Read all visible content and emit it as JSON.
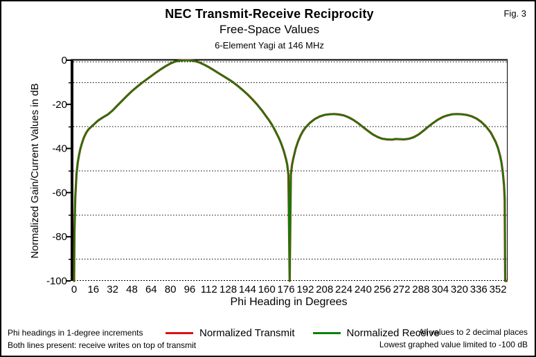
{
  "figure": {
    "title": "NEC Transmit-Receive Reciprocity",
    "subtitle": "Free-Space Values",
    "caption": "6-Element Yagi at 146 MHz",
    "fig_label": "Fig. 3"
  },
  "legend": {
    "items": [
      {
        "label": "Normalized Transmit",
        "color": "#e01010"
      },
      {
        "label": "Normalized Receive",
        "color": "#078207"
      }
    ]
  },
  "footnotes": {
    "left_line1": "Phi headings in 1-degree increments",
    "left_line2": "Both lines present: receive writes on top of transmit",
    "right_line1": "All values to 2 decimal places",
    "right_line2": "Lowest graphed value limited to -100 dB"
  },
  "chart_data": {
    "type": "line",
    "title": "NEC Transmit-Receive Reciprocity - Free-Space Values - 6-Element Yagi at 146 MHz",
    "xlabel": "Phi Heading in Degrees",
    "ylabel": "Normalized Gain/Current Values in dB",
    "xlim": [
      0,
      360
    ],
    "ylim": [
      -100,
      0
    ],
    "x_ticks": [
      0,
      16,
      32,
      48,
      64,
      80,
      96,
      112,
      128,
      144,
      160,
      176,
      192,
      208,
      224,
      240,
      256,
      272,
      288,
      304,
      320,
      336,
      352
    ],
    "y_ticks": [
      0,
      -20,
      -40,
      -60,
      -80,
      -100
    ],
    "y_minor_gridlines": [
      -10,
      -30,
      -50,
      -70,
      -90
    ],
    "grid": "dotted horizontal gridlines at -10/-30/-50/-70/-90; dotted baseline at -100; solid top and right frame; solid thick y-axis",
    "legend_position": "bottom",
    "notes": "Receive curve is drawn on top of the identical transmit curve; lowest graphed value limited to -100 dB",
    "series": [
      {
        "name": "Normalized Transmit",
        "color": "#e01010",
        "identical_to": "Normalized Receive"
      },
      {
        "name": "Normalized Receive",
        "color": "#078207",
        "points": [
          [
            0,
            -100
          ],
          [
            0.3,
            -78
          ],
          [
            1,
            -62
          ],
          [
            2,
            -51.5
          ],
          [
            3,
            -46.5
          ],
          [
            4,
            -43.2
          ],
          [
            5,
            -40.6
          ],
          [
            6,
            -38.6
          ],
          [
            8,
            -35.2
          ],
          [
            10,
            -32.9
          ],
          [
            12,
            -31.3
          ],
          [
            14,
            -30.3
          ],
          [
            16,
            -29.3
          ],
          [
            18,
            -28.3
          ],
          [
            20,
            -27.3
          ],
          [
            24,
            -25.9
          ],
          [
            28,
            -24.6
          ],
          [
            32,
            -22.8
          ],
          [
            36,
            -20.5
          ],
          [
            40,
            -18.3
          ],
          [
            44,
            -16.1
          ],
          [
            48,
            -14
          ],
          [
            52,
            -12.2
          ],
          [
            56,
            -10.4
          ],
          [
            60,
            -8.8
          ],
          [
            64,
            -7.2
          ],
          [
            68,
            -5.6
          ],
          [
            72,
            -4.1
          ],
          [
            76,
            -2.7
          ],
          [
            80,
            -1.5
          ],
          [
            84,
            -0.6
          ],
          [
            88,
            -0.15
          ],
          [
            92,
            0
          ],
          [
            96,
            -0.05
          ],
          [
            100,
            -0.35
          ],
          [
            104,
            -1
          ],
          [
            108,
            -2
          ],
          [
            112,
            -3.2
          ],
          [
            116,
            -4.5
          ],
          [
            120,
            -5.9
          ],
          [
            124,
            -7.2
          ],
          [
            128,
            -8.6
          ],
          [
            132,
            -10
          ],
          [
            136,
            -11.7
          ],
          [
            140,
            -13.5
          ],
          [
            144,
            -15.5
          ],
          [
            148,
            -17.7
          ],
          [
            152,
            -20.1
          ],
          [
            156,
            -22.8
          ],
          [
            160,
            -25.8
          ],
          [
            162,
            -27.3
          ],
          [
            164,
            -29
          ],
          [
            166,
            -30.9
          ],
          [
            168,
            -33
          ],
          [
            170,
            -35.2
          ],
          [
            172,
            -37.8
          ],
          [
            174,
            -40.9
          ],
          [
            176,
            -44.8
          ],
          [
            177,
            -47.4
          ],
          [
            178,
            -52
          ],
          [
            179,
            -100
          ],
          [
            180,
            -52
          ],
          [
            181,
            -47.4
          ],
          [
            182,
            -44.6
          ],
          [
            184,
            -40
          ],
          [
            186,
            -36.8
          ],
          [
            188,
            -34.2
          ],
          [
            190,
            -32.2
          ],
          [
            192,
            -30.6
          ],
          [
            196,
            -28.3
          ],
          [
            200,
            -26.6
          ],
          [
            204,
            -25.5
          ],
          [
            208,
            -24.8
          ],
          [
            212,
            -24.5
          ],
          [
            216,
            -24.4
          ],
          [
            220,
            -24.6
          ],
          [
            224,
            -25
          ],
          [
            228,
            -25.9
          ],
          [
            232,
            -27.1
          ],
          [
            236,
            -28.6
          ],
          [
            240,
            -30.3
          ],
          [
            244,
            -32
          ],
          [
            248,
            -33.6
          ],
          [
            252,
            -34.8
          ],
          [
            256,
            -35.6
          ],
          [
            260,
            -35.9
          ],
          [
            264,
            -36
          ],
          [
            267,
            -35.7
          ],
          [
            270,
            -35.8
          ],
          [
            274,
            -35.9
          ],
          [
            278,
            -35.6
          ],
          [
            282,
            -34.9
          ],
          [
            286,
            -33.7
          ],
          [
            290,
            -32
          ],
          [
            294,
            -30.2
          ],
          [
            298,
            -28.5
          ],
          [
            302,
            -27
          ],
          [
            306,
            -25.8
          ],
          [
            310,
            -25
          ],
          [
            314,
            -24.5
          ],
          [
            318,
            -24.4
          ],
          [
            322,
            -24.5
          ],
          [
            326,
            -24.8
          ],
          [
            330,
            -25.4
          ],
          [
            334,
            -26.4
          ],
          [
            338,
            -27.9
          ],
          [
            342,
            -30
          ],
          [
            346,
            -32.8
          ],
          [
            350,
            -36.9
          ],
          [
            352,
            -39.8
          ],
          [
            354,
            -43.9
          ],
          [
            355,
            -46.7
          ],
          [
            356,
            -50.6
          ],
          [
            357,
            -56.5
          ],
          [
            357.6,
            -63
          ],
          [
            358,
            -100
          ],
          [
            359.2,
            -100
          ]
        ]
      }
    ]
  }
}
